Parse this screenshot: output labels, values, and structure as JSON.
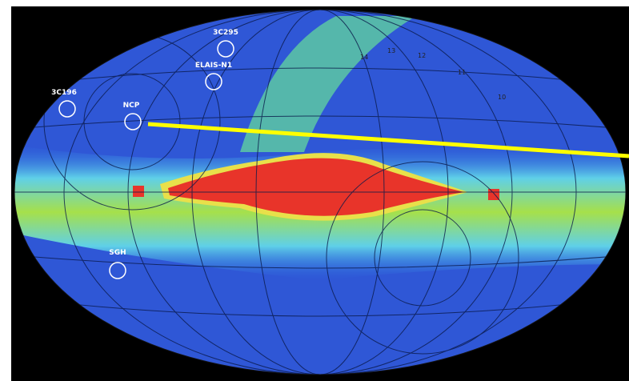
{
  "sources": [
    "3C295",
    "ELAIS-N1",
    "3C196",
    "NCP",
    "SGH"
  ],
  "grid_numbers": [
    "14",
    "13",
    "12",
    "11",
    "10"
  ]
}
